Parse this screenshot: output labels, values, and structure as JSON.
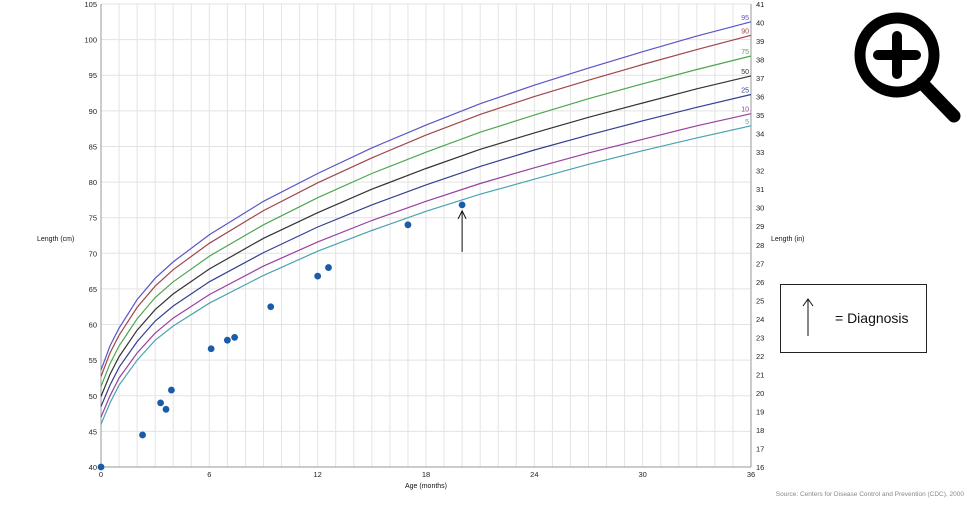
{
  "chart_data": {
    "type": "line",
    "xlabel": "Age (months)",
    "ylabel": "Length (cm)",
    "ylabel_right": "Length (in)",
    "xlim": [
      0,
      36
    ],
    "ylim": [
      40,
      105
    ],
    "ylim_right": [
      16,
      41
    ],
    "x_ticks": [
      "0",
      "6",
      "12",
      "18",
      "24",
      "30",
      "36"
    ],
    "y_ticks": [
      "40",
      "45",
      "50",
      "55",
      "60",
      "65",
      "70",
      "75",
      "80",
      "85",
      "90",
      "95",
      "100",
      "105"
    ],
    "y_ticks_right": [
      "16",
      "17",
      "18",
      "19",
      "20",
      "21",
      "22",
      "23",
      "24",
      "25",
      "26",
      "27",
      "28",
      "29",
      "30",
      "31",
      "32",
      "33",
      "34",
      "35",
      "36",
      "37",
      "38",
      "39",
      "40",
      "41"
    ],
    "grid": true,
    "x": [
      0,
      0.5,
      1,
      2,
      3,
      4,
      6,
      9,
      12,
      15,
      18,
      21,
      24,
      27,
      30,
      33,
      36
    ],
    "series": [
      {
        "name": "95",
        "color": "#5a55c8",
        "values": [
          53.6,
          57.0,
          59.5,
          63.5,
          66.5,
          68.8,
          72.6,
          77.3,
          81.2,
          84.8,
          88.0,
          91.0,
          93.6,
          96.0,
          98.3,
          100.5,
          102.5
        ]
      },
      {
        "name": "90",
        "color": "#a0464a",
        "values": [
          52.7,
          56.0,
          58.5,
          62.4,
          65.4,
          67.7,
          71.4,
          76.0,
          79.9,
          83.4,
          86.6,
          89.5,
          92.0,
          94.3,
          96.5,
          98.6,
          100.6
        ]
      },
      {
        "name": "75",
        "color": "#4ea650",
        "values": [
          51.3,
          54.5,
          57.0,
          60.8,
          63.8,
          66.0,
          69.6,
          74.0,
          77.8,
          81.2,
          84.2,
          87.0,
          89.4,
          91.7,
          93.8,
          95.8,
          97.7
        ]
      },
      {
        "name": "50",
        "color": "#333333",
        "values": [
          49.9,
          53.0,
          55.5,
          59.2,
          62.1,
          64.3,
          67.8,
          72.1,
          75.7,
          79.0,
          81.9,
          84.6,
          86.9,
          89.1,
          91.1,
          93.1,
          94.9
        ]
      },
      {
        "name": "25",
        "color": "#33408f",
        "values": [
          48.5,
          51.5,
          54.0,
          57.6,
          60.5,
          62.6,
          66.0,
          70.1,
          73.7,
          76.8,
          79.6,
          82.2,
          84.5,
          86.6,
          88.6,
          90.5,
          92.3
        ]
      },
      {
        "name": "10",
        "color": "#9a3fa0",
        "values": [
          47.0,
          50.0,
          52.5,
          56.0,
          58.8,
          60.9,
          64.2,
          68.2,
          71.6,
          74.6,
          77.3,
          79.8,
          82.0,
          84.1,
          86.0,
          87.9,
          89.6
        ]
      },
      {
        "name": "5",
        "color": "#4aa3b0",
        "values": [
          46.0,
          49.0,
          51.5,
          55.0,
          57.8,
          59.8,
          63.0,
          66.9,
          70.3,
          73.2,
          75.9,
          78.3,
          80.4,
          82.5,
          84.4,
          86.2,
          87.9
        ]
      }
    ],
    "points": [
      {
        "x": 0,
        "y": 40
      },
      {
        "x": 2.3,
        "y": 44.5
      },
      {
        "x": 3.3,
        "y": 49
      },
      {
        "x": 3.6,
        "y": 48.1
      },
      {
        "x": 3.9,
        "y": 50.8
      },
      {
        "x": 6.1,
        "y": 56.6
      },
      {
        "x": 7.0,
        "y": 57.8
      },
      {
        "x": 7.4,
        "y": 58.2
      },
      {
        "x": 9.4,
        "y": 62.5
      },
      {
        "x": 12.0,
        "y": 66.8
      },
      {
        "x": 12.6,
        "y": 68.0
      },
      {
        "x": 17.0,
        "y": 74.0
      },
      {
        "x": 20.0,
        "y": 76.8
      }
    ],
    "point_color": "#1a5ca8",
    "diagnosis_point_index": 12
  },
  "legend": {
    "text": "= Diagnosis"
  },
  "source": "Source: Centers for Disease Control and Prevention (CDC), 2000",
  "zoom_icon": "zoom-in-icon"
}
